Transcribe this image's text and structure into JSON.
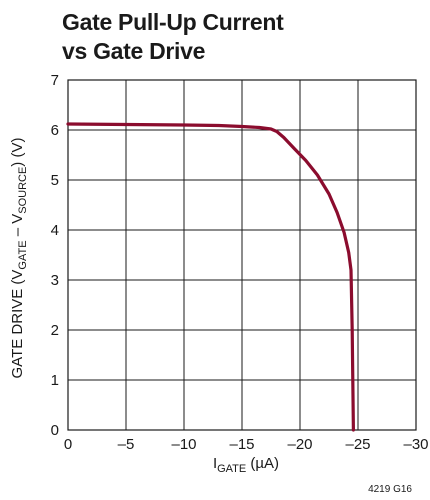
{
  "chart_data": {
    "type": "line",
    "title_line1": "Gate Pull-Up Current",
    "title_line2": "vs Gate Drive",
    "xlabel": {
      "main": "I",
      "sub": "GATE",
      "unit": " (µA)"
    },
    "ylabel": {
      "prefix": "GATE DRIVE (V",
      "sub1": "GATE",
      "mid": " – V",
      "sub2": "SOURCE",
      "suffix": ") (V)"
    },
    "xlim": [
      0,
      -30
    ],
    "ylim": [
      0,
      7
    ],
    "xticks": [
      0,
      -5,
      -10,
      -15,
      -20,
      -25,
      -30
    ],
    "xtick_labels": [
      "0",
      "–5",
      "–10",
      "–15",
      "–20",
      "–25",
      "–30"
    ],
    "yticks": [
      0,
      1,
      2,
      3,
      4,
      5,
      6,
      7
    ],
    "ytick_labels": [
      "0",
      "1",
      "2",
      "3",
      "4",
      "5",
      "6",
      "7"
    ],
    "grid": true,
    "series": [
      {
        "color": "#8b0c2e",
        "x": [
          0,
          -5,
          -10,
          -13,
          -15,
          -16.5,
          -17.5,
          -18,
          -18.6,
          -19.5,
          -20.5,
          -21.5,
          -22.5,
          -23.2,
          -23.8,
          -24.2,
          -24.4,
          -24.5,
          -24.55,
          -24.6
        ],
        "y": [
          6.12,
          6.11,
          6.1,
          6.09,
          6.07,
          6.05,
          6.02,
          5.97,
          5.85,
          5.63,
          5.39,
          5.1,
          4.72,
          4.35,
          3.95,
          3.55,
          3.2,
          2.0,
          1.0,
          0
        ]
      }
    ],
    "figure_id": "4219 G16"
  }
}
